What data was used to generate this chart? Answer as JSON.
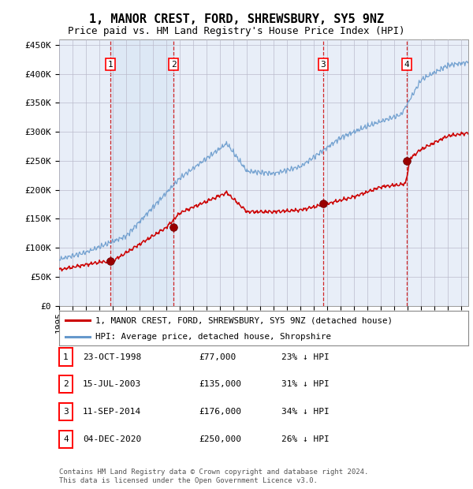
{
  "title": "1, MANOR CREST, FORD, SHREWSBURY, SY5 9NZ",
  "subtitle": "Price paid vs. HM Land Registry's House Price Index (HPI)",
  "ylabel_ticks": [
    "£0",
    "£50K",
    "£100K",
    "£150K",
    "£200K",
    "£250K",
    "£300K",
    "£350K",
    "£400K",
    "£450K"
  ],
  "ytick_values": [
    0,
    50000,
    100000,
    150000,
    200000,
    250000,
    300000,
    350000,
    400000,
    450000
  ],
  "ylim": [
    0,
    460000
  ],
  "xlim_start": 1995.0,
  "xlim_end": 2025.5,
  "background_color": "#ffffff",
  "plot_bg_color": "#e8eef8",
  "grid_color": "#bbbbcc",
  "shade_regions": [
    [
      1998.81,
      2003.54
    ]
  ],
  "shade_color": "#dde8f5",
  "sale_dates": [
    1998.81,
    2003.54,
    2014.69,
    2020.92
  ],
  "sale_prices": [
    77000,
    135000,
    176000,
    250000
  ],
  "sale_labels": [
    "1",
    "2",
    "3",
    "4"
  ],
  "vline_color": "#cc0000",
  "sale_marker_color": "#990000",
  "hpi_line_color": "#6699cc",
  "price_line_color": "#cc0000",
  "legend_label_price": "1, MANOR CREST, FORD, SHREWSBURY, SY5 9NZ (detached house)",
  "legend_label_hpi": "HPI: Average price, detached house, Shropshire",
  "table_rows": [
    [
      "1",
      "23-OCT-1998",
      "£77,000",
      "23% ↓ HPI"
    ],
    [
      "2",
      "15-JUL-2003",
      "£135,000",
      "31% ↓ HPI"
    ],
    [
      "3",
      "11-SEP-2014",
      "£176,000",
      "34% ↓ HPI"
    ],
    [
      "4",
      "04-DEC-2020",
      "£250,000",
      "26% ↓ HPI"
    ]
  ],
  "footer": "Contains HM Land Registry data © Crown copyright and database right 2024.\nThis data is licensed under the Open Government Licence v3.0.",
  "title_fontsize": 11,
  "subtitle_fontsize": 9,
  "tick_fontsize": 8
}
